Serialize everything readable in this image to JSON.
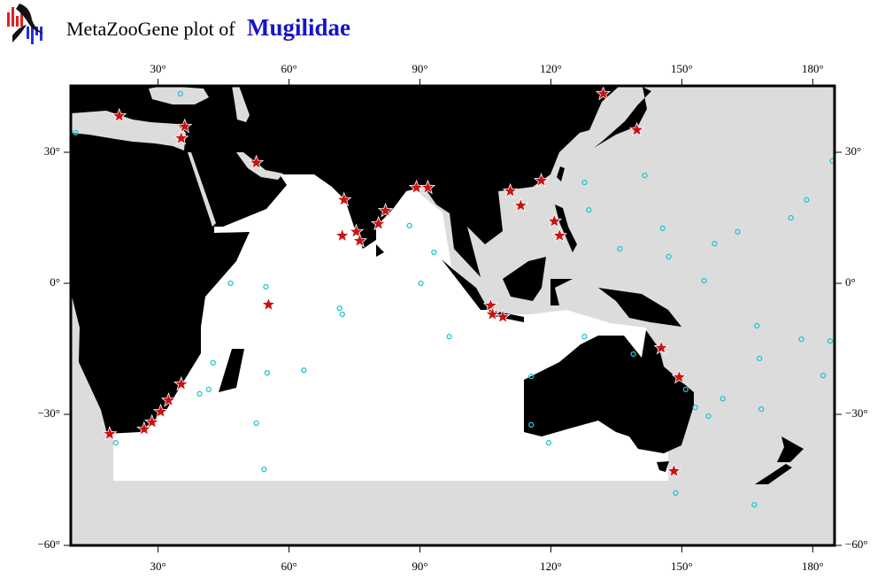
{
  "header": {
    "prefix": "MetaZooGene plot of",
    "taxon": "Mugilidae"
  },
  "map": {
    "xlim": [
      10,
      185
    ],
    "ylim": [
      -60,
      45.2
    ],
    "xticks": [
      {
        "value": 30,
        "label": "30°"
      },
      {
        "value": 60,
        "label": "60°"
      },
      {
        "value": 90,
        "label": "90°"
      },
      {
        "value": 120,
        "label": "120°"
      },
      {
        "value": 150,
        "label": "150°"
      },
      {
        "value": 180,
        "label": "180°"
      }
    ],
    "yticks": [
      {
        "value": 30,
        "label": "30°"
      },
      {
        "value": 0,
        "label": "0°"
      },
      {
        "value": -30,
        "label": "−30°"
      },
      {
        "value": -60,
        "label": "−60°"
      }
    ],
    "record_color": "#cc1111",
    "sample_color": "#1fc6cf",
    "records": {
      "lon": [
        21.1,
        36.1,
        35.3,
        52.5,
        132,
        139.7,
        72.6,
        72.2,
        75.4,
        76.2,
        80.5,
        82.1,
        89.2,
        91.8,
        110.7,
        113.1,
        117.8,
        120.8,
        122,
        55.3,
        106.2,
        106.6,
        109,
        35.3,
        32.4,
        30.6,
        28.6,
        26.8,
        18.9,
        145.3,
        149.4,
        148.2
      ],
      "lat": [
        38.3,
        35.9,
        33.2,
        27.6,
        43.4,
        35.1,
        19.1,
        10.9,
        11.8,
        9.7,
        13.6,
        16.6,
        21.9,
        21.9,
        21.1,
        17.8,
        23.5,
        14.2,
        10.9,
        -4.9,
        -5.1,
        -7.1,
        -7.7,
        -23.1,
        -26.8,
        -29.4,
        -31.8,
        -33.4,
        -34.5,
        -14.8,
        -21.5,
        -43
      ]
    },
    "samples": {
      "lon": [
        35.1,
        11.1,
        54.7,
        71.6,
        72.2,
        96.7,
        90.2,
        87.6,
        93.2,
        63.4,
        55,
        52.5,
        54.3,
        41.6,
        141.5,
        145.6,
        147,
        155.1,
        157.5,
        162.8,
        175,
        178.6,
        184.5,
        167.2,
        167.8,
        168.2,
        177.4,
        184,
        182.4,
        166.6,
        148.6,
        156.1,
        159.4,
        127.7,
        128.7,
        135.8,
        127.7,
        115.5,
        115.5,
        119.5,
        153.1,
        150.9,
        138.9,
        46.6,
        42.6,
        39.5,
        20.3
      ],
      "lat": [
        43.4,
        34.5,
        -0.8,
        -5.7,
        -7.1,
        -12.2,
        0,
        13.2,
        7.1,
        -19.9,
        -20.5,
        -32,
        -42.6,
        -24.3,
        24.7,
        12.6,
        6.1,
        0.6,
        9.1,
        11.8,
        15,
        19.1,
        28,
        -9.7,
        -17.2,
        -28.8,
        -12.8,
        -13.2,
        -21.1,
        -50.7,
        -48,
        -30.4,
        -26.4,
        23.1,
        16.8,
        7.9,
        -12.2,
        -21.3,
        -32.4,
        -36.5,
        -28.4,
        -24.3,
        -16.2,
        0,
        -18.2,
        -25.3,
        -36.5
      ]
    }
  }
}
